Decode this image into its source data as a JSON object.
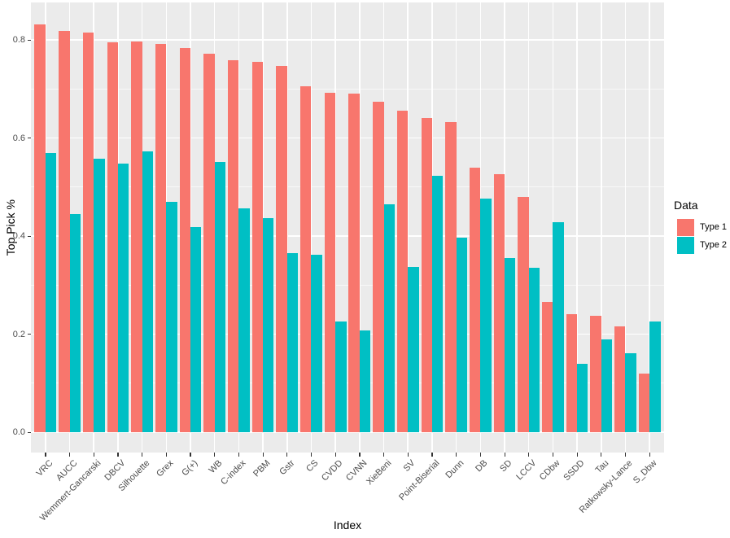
{
  "chart_data": {
    "type": "bar",
    "title": "",
    "xlabel": "Index",
    "ylabel": "Top Pick %",
    "legend_title": "Data",
    "legend_position": "right",
    "grid": true,
    "ylim": [
      0,
      0.88
    ],
    "y_major_ticks": [
      0.0,
      0.2,
      0.4,
      0.6,
      0.8
    ],
    "y_tick_labels": [
      "0.0",
      "0.2",
      "0.4",
      "0.6",
      "0.8"
    ],
    "y_minor_ticks": [
      0.1,
      0.3,
      0.5,
      0.7
    ],
    "categories": [
      "VRC",
      "AUCC",
      "Wemmert-Gancarski",
      "DBCV",
      "Silhouette",
      "Grex",
      "G(+)",
      "WB",
      "C-index",
      "PBM",
      "Gstr",
      "CS",
      "CVDD",
      "CVNN",
      "XieBeni",
      "SV",
      "Point-Biserial",
      "Dunn",
      "DB",
      "SD",
      "LCCV",
      "CDbw",
      "SSDD",
      "Tau",
      "Ratkowsky-Lance",
      "S_Dbw"
    ],
    "series": [
      {
        "name": "Type 1",
        "color": "#F8766D",
        "values": [
          0.832,
          0.818,
          0.815,
          0.795,
          0.796,
          0.792,
          0.783,
          0.772,
          0.758,
          0.756,
          0.747,
          0.706,
          0.693,
          0.69,
          0.674,
          0.656,
          0.64,
          0.632,
          0.54,
          0.526,
          0.479,
          0.265,
          0.241,
          0.238,
          0.216,
          0.119
        ]
      },
      {
        "name": "Type 2",
        "color": "#00BFC4",
        "values": [
          0.57,
          0.445,
          0.558,
          0.547,
          0.573,
          0.469,
          0.418,
          0.551,
          0.456,
          0.436,
          0.366,
          0.362,
          0.225,
          0.207,
          0.464,
          0.337,
          0.523,
          0.396,
          0.476,
          0.356,
          0.335,
          0.429,
          0.14,
          0.189,
          0.161,
          0.226
        ]
      }
    ],
    "colors": {
      "panel_background": "#EBEBEB",
      "gridline": "#FFFFFF",
      "tick_text": "#4D4D4D",
      "axis_title": "#000000"
    }
  }
}
